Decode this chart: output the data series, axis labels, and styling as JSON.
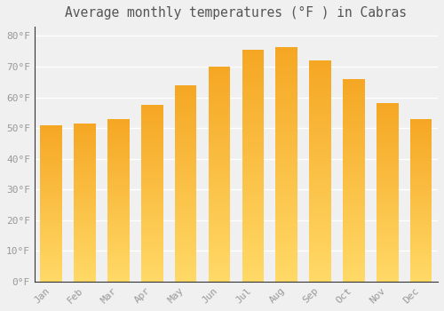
{
  "title": "Average monthly temperatures (°F ) in Cabras",
  "months": [
    "Jan",
    "Feb",
    "Mar",
    "Apr",
    "May",
    "Jun",
    "Jul",
    "Aug",
    "Sep",
    "Oct",
    "Nov",
    "Dec"
  ],
  "values": [
    51,
    51.5,
    53,
    57.5,
    64,
    70,
    75.5,
    76.5,
    72,
    66,
    58,
    53
  ],
  "bar_color_top": "#F5A623",
  "bar_color_bottom": "#FFD966",
  "background_color": "#f0f0f0",
  "grid_color": "#ffffff",
  "yticks": [
    0,
    10,
    20,
    30,
    40,
    50,
    60,
    70,
    80
  ],
  "ylim": [
    0,
    83
  ],
  "title_fontsize": 10.5,
  "tick_fontsize": 8,
  "tick_color": "#999999",
  "title_color": "#555555"
}
